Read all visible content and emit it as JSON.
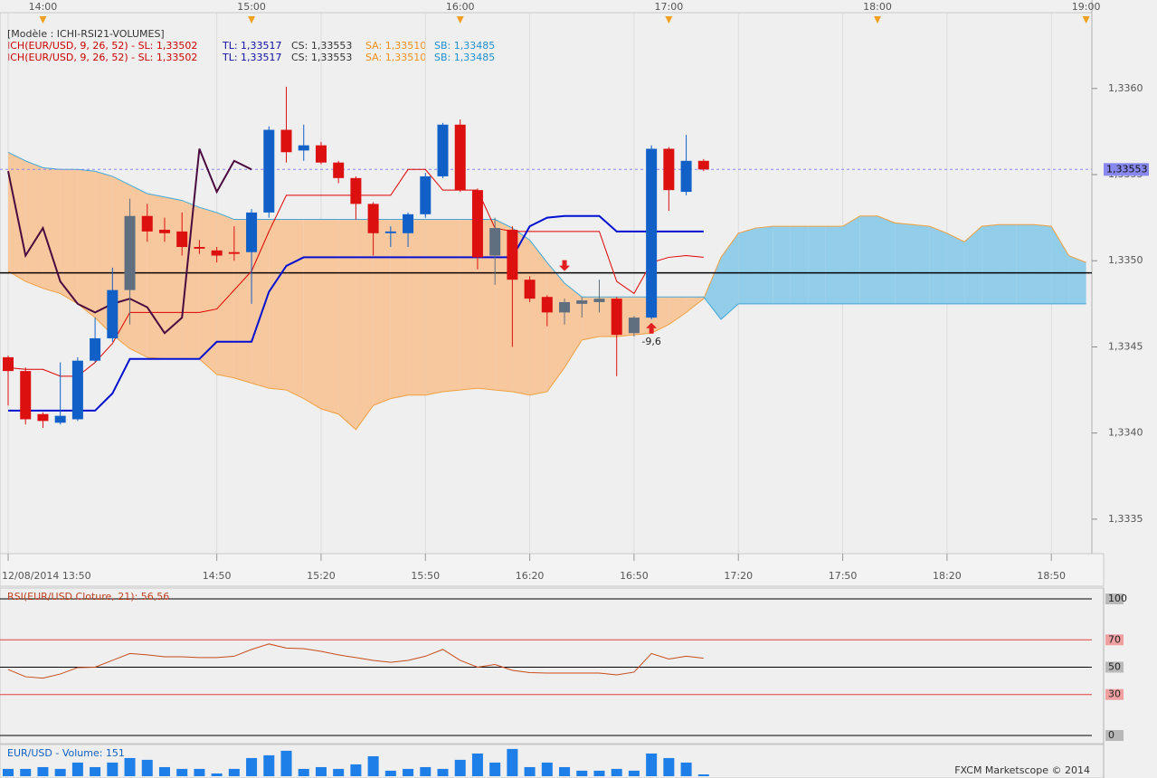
{
  "chart_data": [
    {
      "type": "candlestick",
      "title": "[Modèle : ICHI-RSI21-VOLUMES]",
      "legend": [
        [
          {
            "text": "ICH(EUR/USD, 9, 26, 52) -  SL: 1,33502",
            "color": "#cc0000"
          },
          {
            "text": "TL: 1,33517",
            "color": "#1010a0"
          },
          {
            "text": "CS: 1,33553",
            "color": "#333333"
          },
          {
            "text": "SA: 1,33510",
            "color": "#f09020"
          },
          {
            "text": "SB: 1,33485",
            "color": "#2090d0"
          }
        ],
        [
          {
            "text": "ICH(EUR/USD, 9, 26, 52) -  SL: 1,33502",
            "color": "#cc0000"
          },
          {
            "text": "TL: 1,33517",
            "color": "#1010a0"
          },
          {
            "text": "CS: 1,33553",
            "color": "#333333"
          },
          {
            "text": "SA: 1,33510",
            "color": "#f09020"
          },
          {
            "text": "SB: 1,33485",
            "color": "#2090d0"
          }
        ]
      ],
      "x": [
        "13:50",
        "13:55",
        "14:00",
        "14:05",
        "14:10",
        "14:15",
        "14:20",
        "14:25",
        "14:30",
        "14:35",
        "14:40",
        "14:45",
        "14:50",
        "14:55",
        "15:00",
        "15:05",
        "15:10",
        "15:15",
        "15:20",
        "15:25",
        "15:30",
        "15:35",
        "15:40",
        "15:45",
        "15:50",
        "15:55",
        "16:00",
        "16:05",
        "16:10",
        "16:15",
        "16:20",
        "16:25",
        "16:30",
        "16:35",
        "16:40",
        "16:45",
        "16:50",
        "16:55",
        "17:00",
        "17:05",
        "17:10",
        "17:15",
        "17:20",
        "17:25",
        "17:30",
        "17:35",
        "17:40",
        "17:45",
        "17:50",
        "17:55",
        "18:00",
        "18:05",
        "18:10",
        "18:15",
        "18:20",
        "18:25",
        "18:30",
        "18:35",
        "18:40",
        "18:45",
        "18:50",
        "18:55",
        "19:00"
      ],
      "open": [
        1.33444,
        1.33436,
        1.33411,
        1.33406,
        1.33408,
        1.33442,
        1.33455,
        1.33483,
        1.33526,
        1.33518,
        1.33517,
        1.33508,
        1.33506,
        1.33505,
        1.33505,
        1.33528,
        1.33576,
        1.33564,
        1.33567,
        1.33557,
        1.33548,
        1.33533,
        1.33516,
        1.33516,
        1.33527,
        1.33549,
        1.33579,
        1.33541,
        1.33503,
        1.33518,
        1.33489,
        1.33479,
        1.3347,
        1.33475,
        1.33476,
        1.33478,
        1.33458,
        1.33467,
        1.33565,
        1.3354,
        1.33558,
        null,
        null,
        null,
        null,
        null,
        null,
        null,
        null,
        null,
        null,
        null,
        null,
        null,
        null,
        null,
        null,
        null,
        null,
        null,
        null,
        null,
        null
      ],
      "high": [
        1.33445,
        1.33438,
        1.33412,
        1.33441,
        1.33444,
        1.33467,
        1.33496,
        1.33536,
        1.33533,
        1.33525,
        1.33528,
        1.33512,
        1.33508,
        1.3352,
        1.3353,
        1.33578,
        1.33601,
        1.33579,
        1.33569,
        1.33558,
        1.33549,
        1.33534,
        1.3352,
        1.33528,
        1.33551,
        1.3358,
        1.33582,
        1.33542,
        1.33525,
        1.3352,
        1.33491,
        1.3348,
        1.33478,
        1.33479,
        1.33489,
        1.33479,
        1.33468,
        1.33567,
        1.33566,
        1.33573,
        1.33559,
        null,
        null,
        null,
        null,
        null,
        null,
        null,
        null,
        null,
        null,
        null,
        null,
        null,
        null,
        null,
        null,
        null,
        null,
        null,
        null,
        null,
        null
      ],
      "low": [
        1.33416,
        1.33405,
        1.33403,
        1.33405,
        1.33407,
        1.33441,
        1.33453,
        1.33463,
        1.33511,
        1.33511,
        1.33503,
        1.33504,
        1.33499,
        1.335,
        1.33475,
        1.33525,
        1.33557,
        1.33558,
        1.33556,
        1.33545,
        1.33524,
        1.33503,
        1.33508,
        1.33508,
        1.33525,
        1.33548,
        1.3354,
        1.33495,
        1.33486,
        1.3345,
        1.33476,
        1.33462,
        1.33463,
        1.33467,
        1.3347,
        1.33433,
        1.33456,
        1.33466,
        1.33529,
        1.33538,
        1.33552,
        null,
        null,
        null,
        null,
        null,
        null,
        null,
        null,
        null,
        null,
        null,
        null,
        null,
        null,
        null,
        null,
        null,
        null,
        null,
        null,
        null,
        null
      ],
      "close": [
        1.33436,
        1.33408,
        1.33407,
        1.3341,
        1.33442,
        1.33455,
        1.33483,
        1.33526,
        1.33517,
        1.33516,
        1.33508,
        1.33507,
        1.33503,
        1.33504,
        1.33528,
        1.33576,
        1.33563,
        1.33567,
        1.33557,
        1.33548,
        1.33533,
        1.33516,
        1.33517,
        1.33527,
        1.33549,
        1.33579,
        1.33541,
        1.33502,
        1.33519,
        1.33489,
        1.33478,
        1.3347,
        1.33476,
        1.33477,
        1.33478,
        1.33457,
        1.33467,
        1.33565,
        1.33541,
        1.33558,
        1.33553,
        null,
        null,
        null,
        null,
        null,
        null,
        null,
        null,
        null,
        null,
        null,
        null,
        null,
        null,
        null,
        null,
        null,
        null,
        null,
        null,
        null,
        null
      ],
      "candle_colors": [
        "#dd1010",
        "#dd1010",
        "#dd1010",
        "#1060c8",
        "#1060c8",
        "#1060c8",
        "#1060c8",
        "#5f6f80",
        "#dd1010",
        "#dd1010",
        "#dd1010",
        "#dd1010",
        "#dd1010",
        "#dd1010",
        "#1060c8",
        "#1060c8",
        "#dd1010",
        "#1060c8",
        "#dd1010",
        "#dd1010",
        "#dd1010",
        "#dd1010",
        "#1060c8",
        "#1060c8",
        "#1060c8",
        "#1060c8",
        "#dd1010",
        "#dd1010",
        "#5f6f80",
        "#dd1010",
        "#dd1010",
        "#dd1010",
        "#5f6f80",
        "#5f6f80",
        "#5f6f80",
        "#dd1010",
        "#5f6f80",
        "#1060c8",
        "#dd1010",
        "#1060c8",
        "#dd1010",
        null,
        null,
        null,
        null,
        null,
        null,
        null,
        null,
        null,
        null,
        null,
        null,
        null,
        null,
        null,
        null,
        null,
        null,
        null,
        null,
        null,
        null
      ],
      "senkou_a": {
        "color": "#f0a040",
        "values": [
          1.33494,
          1.33488,
          1.33484,
          1.33481,
          1.33475,
          1.33467,
          1.33457,
          1.33449,
          1.33444,
          1.33443,
          1.33443,
          1.33443,
          1.33434,
          1.33432,
          1.33429,
          1.33426,
          1.33425,
          1.3342,
          1.33414,
          1.33411,
          1.33402,
          1.33416,
          1.3342,
          1.33422,
          1.33422,
          1.33424,
          1.33425,
          1.33426,
          1.33425,
          1.33424,
          1.33422,
          1.33424,
          1.33438,
          1.33454,
          1.33456,
          1.33456,
          1.33457,
          1.33458,
          1.33463,
          1.3347,
          1.33478,
          1.33502,
          1.33516,
          1.33519,
          1.3352,
          1.3352,
          1.3352,
          1.3352,
          1.3352,
          1.33526,
          1.33526,
          1.33522,
          1.33521,
          1.3352,
          1.33516,
          1.33511,
          1.3352,
          1.33521,
          1.33521,
          1.33521,
          1.3352,
          1.33503,
          1.33499
        ]
      },
      "senkou_b": {
        "color": "#40a8d8",
        "values": [
          1.33563,
          1.33558,
          1.33554,
          1.33553,
          1.33553,
          1.33552,
          1.33549,
          1.33544,
          1.33539,
          1.33537,
          1.33535,
          1.33531,
          1.33528,
          1.33524,
          1.33524,
          1.33524,
          1.33524,
          1.33524,
          1.33524,
          1.33524,
          1.33524,
          1.33524,
          1.33524,
          1.33524,
          1.33524,
          1.33524,
          1.33524,
          1.33524,
          1.33524,
          1.33519,
          1.33512,
          1.33499,
          1.33487,
          1.33479,
          1.33479,
          1.33479,
          1.33479,
          1.33479,
          1.33479,
          1.33479,
          1.33479,
          1.33466,
          1.33475,
          1.33475,
          1.33475,
          1.33475,
          1.33475,
          1.33475,
          1.33475,
          1.33475,
          1.33475,
          1.33475,
          1.33475,
          1.33475,
          1.33475,
          1.33475,
          1.33475,
          1.33475,
          1.33475,
          1.33475,
          1.33475,
          1.33475,
          1.33475
        ]
      },
      "cloud_colors": {
        "above": "#92cdea",
        "below": "#f7c89e"
      },
      "series": [
        {
          "color": "#e00000",
          "width": 1,
          "values": [
            1.33438,
            1.33437,
            1.33437,
            1.33433,
            1.33433,
            1.33441,
            1.33452,
            1.3347,
            1.3347,
            1.3347,
            1.3347,
            1.3347,
            1.33472,
            1.33483,
            1.33494,
            1.33517,
            1.33538,
            1.33538,
            1.33538,
            1.33538,
            1.33538,
            1.33538,
            1.33538,
            1.33553,
            1.33553,
            1.33541,
            1.33541,
            1.33541,
            1.33519,
            1.33517,
            1.33517,
            1.33517,
            1.33517,
            1.33517,
            1.33517,
            1.33488,
            1.33481,
            1.33499,
            1.33502,
            1.33503,
            1.33502,
            null,
            null,
            null,
            null,
            null,
            null,
            null,
            null,
            null,
            null,
            null,
            null,
            null,
            null,
            null,
            null,
            null,
            null,
            null,
            null,
            null,
            null
          ]
        },
        {
          "color": "#0010d0",
          "width": 2,
          "values": [
            1.33413,
            1.33413,
            1.33413,
            1.33413,
            1.33413,
            1.33413,
            1.33423,
            1.33443,
            1.33443,
            1.33443,
            1.33443,
            1.33443,
            1.33453,
            1.33453,
            1.33453,
            1.33482,
            1.33497,
            1.33502,
            1.33502,
            1.33502,
            1.33502,
            1.33502,
            1.33502,
            1.33502,
            1.33502,
            1.33502,
            1.33502,
            1.33502,
            1.33502,
            1.33502,
            1.3352,
            1.33525,
            1.33526,
            1.33526,
            1.33526,
            1.33517,
            1.33517,
            1.33517,
            1.33517,
            1.33517,
            1.33517,
            null,
            null,
            null,
            null,
            null,
            null,
            null,
            null,
            null,
            null,
            null,
            null,
            null,
            null,
            null,
            null,
            null,
            null,
            null,
            null,
            null,
            null
          ]
        },
        {
          "color": "#4a0a40",
          "width": 2,
          "values": [
            1.33552,
            1.33503,
            1.33519,
            1.33488,
            1.33475,
            1.3347,
            1.33475,
            1.33478,
            1.33473,
            1.33458,
            1.33467,
            1.33565,
            1.3354,
            1.33558,
            1.33553,
            null,
            null,
            null,
            null,
            null,
            null,
            null,
            null,
            null,
            null,
            null,
            null,
            null,
            null,
            null,
            null,
            null,
            null,
            null,
            null,
            null,
            null,
            null,
            null,
            null,
            null,
            null,
            null,
            null,
            null,
            null,
            null,
            null,
            null,
            null,
            null,
            null,
            null,
            null,
            null,
            null,
            null,
            null,
            null,
            null,
            null,
            null,
            null
          ]
        }
      ],
      "hline": {
        "value": 1.33493,
        "color": "#000000"
      },
      "current_price": {
        "value": 1.33553,
        "label": "1,33553",
        "color": "#8888ee"
      },
      "annotations": [
        {
          "x": "16:30",
          "value": 1.33494,
          "direction": "down",
          "color": "#e02020"
        },
        {
          "x": "16:55",
          "value": 1.33464,
          "direction": "up",
          "color": "#e02020",
          "label": "-9,6"
        }
      ],
      "ylim": [
        1.3333,
        1.33644
      ],
      "yticks": [
        {
          "value": 1.3335,
          "label": "1,3335"
        },
        {
          "value": 1.334,
          "label": "1,3340"
        },
        {
          "value": 1.3345,
          "label": "1,3345"
        },
        {
          "value": 1.335,
          "label": "1,3350"
        },
        {
          "value": 1.3355,
          "label": "1,3355"
        },
        {
          "value": 1.336,
          "label": "1,3360"
        }
      ],
      "xticks": [
        {
          "value": "13:50",
          "label": "12/08/2014 13:50"
        },
        "14:50",
        "15:20",
        "15:50",
        "16:20",
        "16:50",
        "17:20",
        "17:50",
        "18:20",
        "18:50"
      ],
      "xticks_top": [
        "14:00",
        "15:00",
        "16:00",
        "17:00",
        "18:00",
        "19:00"
      ]
    },
    {
      "type": "line",
      "title": "RSI(EUR/USD.Cloture, 21): 56,56",
      "color": "#c84b1a",
      "values": [
        48.3,
        43,
        42,
        45,
        49.7,
        50,
        55,
        60,
        59,
        57.6,
        57.6,
        57,
        57,
        58,
        63,
        67,
        64,
        63.6,
        61.6,
        59,
        57,
        55,
        53.6,
        55,
        58,
        63,
        55,
        50,
        52,
        47.7,
        46,
        45.7,
        45.7,
        45.7,
        45.7,
        44.4,
        46.4,
        60,
        56,
        58,
        56.56
      ],
      "ylim": [
        0,
        100
      ],
      "yticks": [
        0,
        30,
        50,
        70,
        100
      ],
      "ytick_colors": [
        "#000000",
        "#e04040",
        "#000000",
        "#e04040",
        "#000000"
      ],
      "ytick_box_colors": [
        "#b8b8b8",
        "#f0a0a0",
        "#b8b8b8",
        "#f0a0a0",
        "#b8b8b8"
      ]
    },
    {
      "type": "bar",
      "title": "EUR/USD - Volume: 151",
      "color": "#1e7fe8",
      "values": [
        610,
        610,
        760,
        610,
        1140,
        760,
        1140,
        1520,
        1370,
        760,
        610,
        610,
        230,
        610,
        1520,
        1750,
        2130,
        610,
        760,
        610,
        990,
        1670,
        460,
        610,
        760,
        610,
        1370,
        1900,
        1140,
        2280,
        760,
        1140,
        760,
        460,
        460,
        610,
        460,
        1900,
        1520,
        1140,
        151
      ],
      "ylim": [
        0,
        2500
      ]
    }
  ],
  "footer": "FXCM Marketscope © 2014"
}
